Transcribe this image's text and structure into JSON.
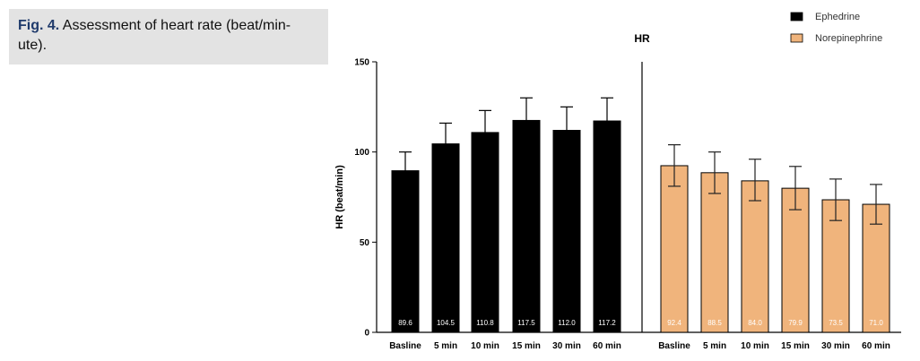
{
  "caption": {
    "label": "Fig. 4.",
    "text": " Assessment of heart rate (beat/min-ute)."
  },
  "colors": {
    "ephedrine": "#000000",
    "norepinephrine": "#f0b47c",
    "axis": "#000000",
    "caption_bg": "#e3e3e3"
  },
  "chart_data": {
    "type": "bar",
    "title": "HR",
    "ylabel": "HR (beat/min)",
    "xlabel": "",
    "ylim": [
      0,
      150
    ],
    "yticks": [
      0,
      50,
      100,
      150
    ],
    "grid": false,
    "legend_position": "top-right",
    "series": [
      {
        "name": "Ephedrine",
        "color": "#000000",
        "categories": [
          "Basline",
          "5 min",
          "10 min",
          "15 min",
          "30 min",
          "60 min"
        ],
        "values": [
          89.6,
          104.5,
          110.8,
          117.5,
          112.0,
          117.2
        ],
        "labels": [
          "89.6",
          "104.5",
          "110.8",
          "117.5",
          "112.0",
          "117.2"
        ],
        "error_upper": [
          100,
          116,
          123,
          130,
          125,
          130
        ],
        "error_lower": [
          80,
          94,
          99,
          105,
          100,
          105
        ]
      },
      {
        "name": "Norepinephrine",
        "color": "#f0b47c",
        "categories": [
          "Basline",
          "5 min",
          "10 min",
          "15 min",
          "30 min",
          "60 min"
        ],
        "values": [
          92.4,
          88.5,
          84.0,
          79.9,
          73.5,
          71.0
        ],
        "labels": [
          "92.4",
          "88.5",
          "84.0",
          "79.9",
          "73.5",
          "71.0"
        ],
        "error_upper": [
          104,
          100,
          96,
          92,
          85,
          82
        ],
        "error_lower": [
          81,
          77,
          73,
          68,
          62,
          60
        ]
      }
    ]
  }
}
